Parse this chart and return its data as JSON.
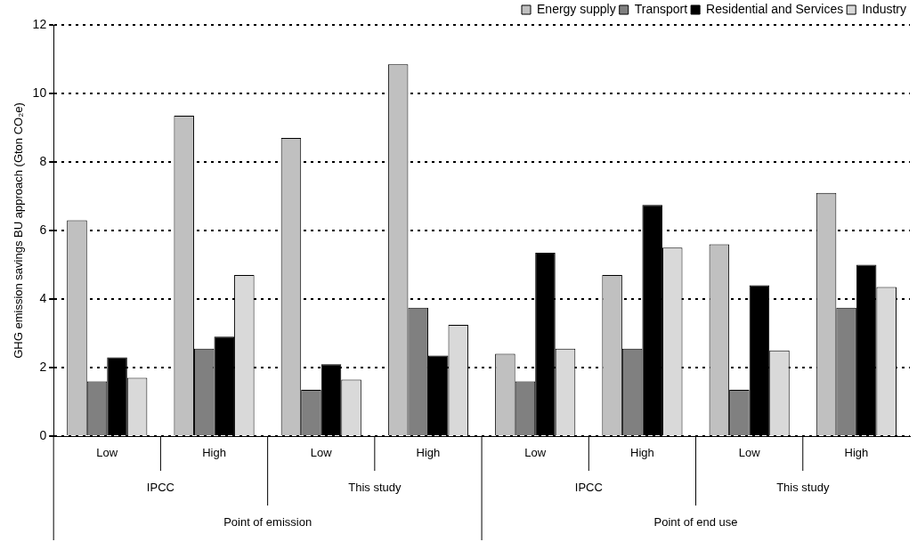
{
  "chart_data": {
    "type": "bar",
    "ylabel": "GHG emission savings BU approach (Gton CO₂e)",
    "categories": [
      "Low",
      "High",
      "Low",
      "High",
      "Low",
      "High",
      "Low",
      "High"
    ],
    "annotations": [
      "IPCC",
      "This study",
      "IPCC",
      "This study",
      "Point of emission",
      "Point of end use"
    ],
    "series": [
      {
        "name": "Energy supply",
        "color": "#c0c0c0",
        "values": [
          6.3,
          9.35,
          8.7,
          10.85,
          2.4,
          4.7,
          5.6,
          7.1
        ]
      },
      {
        "name": "Transport",
        "color": "#808080",
        "values": [
          1.6,
          2.55,
          1.35,
          3.75,
          1.6,
          2.55,
          1.35,
          3.75
        ]
      },
      {
        "name": "Residential and Services",
        "color": "#000000",
        "values": [
          2.3,
          2.9,
          2.1,
          2.35,
          5.35,
          6.75,
          4.4,
          5.0
        ]
      },
      {
        "name": "Industry",
        "color": "#d9d9d9",
        "values": [
          1.7,
          4.7,
          1.65,
          3.25,
          2.55,
          5.5,
          2.5,
          4.35
        ]
      }
    ],
    "ylim": [
      0,
      12
    ],
    "yticks": [
      0,
      2,
      4,
      6,
      8,
      10,
      12
    ],
    "grid": "y",
    "legend": "top right"
  }
}
